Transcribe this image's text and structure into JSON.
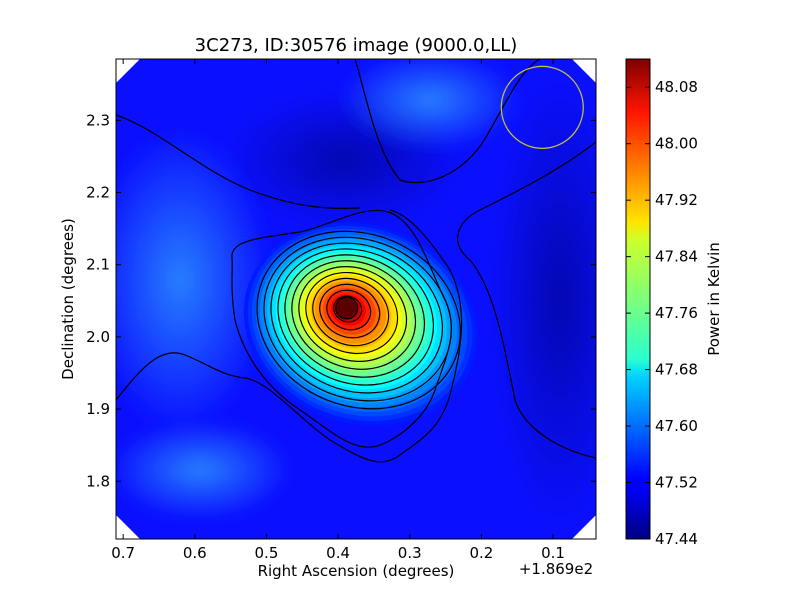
{
  "chart_data": {
    "type": "heatmap",
    "title": "3C273, ID:30576 image (9000.0,LL)",
    "xlabel": "Right Ascension (degrees)",
    "ylabel": "Declination (degrees)",
    "x_offset_label": "+1.869e2",
    "x_ticks": [
      "0.7",
      "0.6",
      "0.5",
      "0.4",
      "0.3",
      "0.2",
      "0.1"
    ],
    "y_ticks": [
      "2.3",
      "2.2",
      "2.1",
      "2.0",
      "1.9",
      "1.8"
    ],
    "x_tick_values": [
      0.7,
      0.6,
      0.5,
      0.4,
      0.3,
      0.2,
      0.1
    ],
    "y_tick_values": [
      2.3,
      2.2,
      2.1,
      2.0,
      1.9,
      1.8
    ],
    "xlim": [
      0.71,
      0.04
    ],
    "ylim": [
      1.72,
      2.385
    ],
    "colorbar": {
      "label": "Power in Kelvin",
      "ticks": [
        "48.08",
        "48.00",
        "47.92",
        "47.84",
        "47.76",
        "47.68",
        "47.60",
        "47.52",
        "47.44"
      ],
      "tick_values": [
        48.08,
        48.0,
        47.92,
        47.84,
        47.76,
        47.68,
        47.6,
        47.52,
        47.44
      ],
      "range": [
        47.44,
        48.12
      ],
      "colormap": "jet"
    },
    "peak": {
      "x": 0.388,
      "y": 2.04,
      "value": 48.12
    },
    "beam_circle": {
      "x": 0.115,
      "y": 2.318,
      "color": "#c8c832"
    },
    "grid": false
  },
  "colors": {
    "background": "#0000ff",
    "contour": "#000000",
    "frame": "#000000"
  }
}
